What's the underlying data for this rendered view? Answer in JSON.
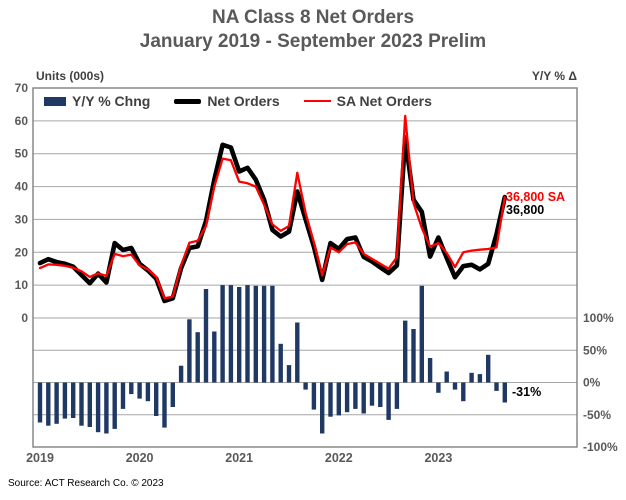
{
  "header": {
    "title_line1": "NA Class 8 Net Orders",
    "title_line2": "January 2019 - September 2023 Prelim"
  },
  "source_note": "Source: ACT Research Co. © 2023",
  "colors": {
    "bar_navy": "#1F3864",
    "line_black": "#000000",
    "line_red": "#FF0000",
    "gridline": "#A6A6A6",
    "plot_border": "#7F7F7F",
    "axis_text": "#595959",
    "title_text": "#595959"
  },
  "chart_data": {
    "type": "combo-bar-line",
    "title": "NA Class 8 Net Orders, January 2019 - September 2023 Prelim",
    "x_start": "2019-01",
    "x_end": "2023-09",
    "n_months": 57,
    "year_labels": [
      "2019",
      "2020",
      "2021",
      "2022",
      "2023"
    ],
    "left_axis": {
      "label": "Units (000s)",
      "min": 0,
      "max": 70,
      "tick_step": 10
    },
    "right_axis": {
      "label": "Y/Y % Δ",
      "min": -100,
      "max": 100,
      "tick_step": 50,
      "tick_suffix": "%"
    },
    "grid": true,
    "legend_position": "top-left-inside",
    "series": [
      {
        "name": "Y/Y % Chng",
        "type": "bar",
        "axis": "right",
        "color": "#1F3864",
        "values": [
          -62,
          -67,
          -64,
          -56,
          -55,
          -67,
          -69,
          -77,
          -79,
          -72,
          -41,
          -18,
          -25,
          -29,
          -52,
          -70,
          -38,
          26,
          98,
          78,
          145,
          79,
          151,
          151,
          148,
          151,
          150,
          150,
          150,
          60,
          27,
          93,
          -11,
          -42,
          -79,
          -53,
          -51,
          -46,
          -41,
          -48,
          -36,
          -38,
          -58,
          -41,
          96,
          83,
          150,
          38,
          -16,
          17,
          -11,
          -29,
          15,
          13,
          43,
          -13,
          -31
        ]
      },
      {
        "name": "Net Orders",
        "type": "line",
        "axis": "left",
        "color": "#000000",
        "values": [
          16.7,
          17.9,
          17.0,
          16.5,
          15.6,
          13.1,
          10.6,
          13.5,
          10.8,
          22.8,
          20.7,
          21.3,
          16.5,
          14.5,
          12.0,
          5.2,
          6.0,
          15.2,
          21.3,
          21.8,
          29.5,
          42.1,
          52.7,
          51.9,
          44.6,
          45.7,
          42.1,
          36.0,
          26.8,
          24.8,
          26.3,
          38.5,
          30.0,
          21.7,
          11.6,
          22.8,
          21.0,
          24.0,
          24.5,
          18.6,
          17.2,
          15.4,
          13.7,
          16.0,
          54.9,
          36.0,
          32.3,
          18.7,
          24.5,
          18.3,
          12.4,
          15.8,
          16.2,
          14.8,
          16.5,
          25.5,
          36.8
        ]
      },
      {
        "name": "SA Net Orders",
        "type": "line",
        "axis": "left",
        "color": "#FF0000",
        "values": [
          15.2,
          16.3,
          16.2,
          15.9,
          15.3,
          14.2,
          12.5,
          13.6,
          12.8,
          19.5,
          18.8,
          19.3,
          16.0,
          14.8,
          12.5,
          6.0,
          6.5,
          16.0,
          22.9,
          23.5,
          28.0,
          40.0,
          48.5,
          48.0,
          41.5,
          41.0,
          40.0,
          34.5,
          28.5,
          26.5,
          28.0,
          44.2,
          32.0,
          23.0,
          13.0,
          21.5,
          20.0,
          22.5,
          23.0,
          19.5,
          18.0,
          16.5,
          15.0,
          18.5,
          61.5,
          35.0,
          27.4,
          21.7,
          22.8,
          19.8,
          15.5,
          20.0,
          20.5,
          20.8,
          21.0,
          21.5,
          36.8
        ]
      }
    ],
    "annotations": {
      "sa_end_label": "36,800 SA",
      "nsa_end_label": "36,800",
      "last_bar_label": "-31%"
    }
  }
}
